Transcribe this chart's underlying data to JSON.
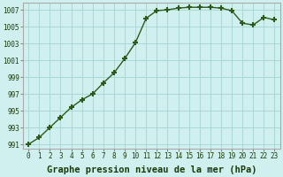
{
  "x": [
    0,
    1,
    2,
    3,
    4,
    5,
    6,
    7,
    8,
    9,
    10,
    11,
    12,
    13,
    14,
    15,
    16,
    17,
    18,
    19,
    20,
    21,
    22,
    23
  ],
  "y": [
    991.0,
    991.8,
    993.0,
    994.2,
    995.4,
    996.3,
    997.0,
    998.3,
    999.5,
    1001.2,
    1003.1,
    1006.0,
    1006.9,
    1007.0,
    1007.2,
    1007.3,
    1007.3,
    1007.3,
    1007.2,
    1006.9,
    1005.4,
    1005.2,
    1006.1,
    1005.8
  ],
  "line_color": "#2d5a1b",
  "marker": "+",
  "marker_size": 5,
  "marker_lw": 1.5,
  "bg_color": "#cff0ee",
  "grid_color": "#aad8d4",
  "xlabel": "Graphe pression niveau de la mer (hPa)",
  "xlabel_fontsize": 7.5,
  "xlabel_weight": "bold",
  "ylim_min": 990.5,
  "ylim_max": 1007.8,
  "yticks": [
    991,
    993,
    995,
    997,
    999,
    1001,
    1003,
    1005,
    1007
  ],
  "xticks": [
    0,
    1,
    2,
    3,
    4,
    5,
    6,
    7,
    8,
    9,
    10,
    11,
    12,
    13,
    14,
    15,
    16,
    17,
    18,
    19,
    20,
    21,
    22,
    23
  ],
  "tick_fontsize": 5.5,
  "line_width": 1.0,
  "title_color": "#1a3a0a"
}
